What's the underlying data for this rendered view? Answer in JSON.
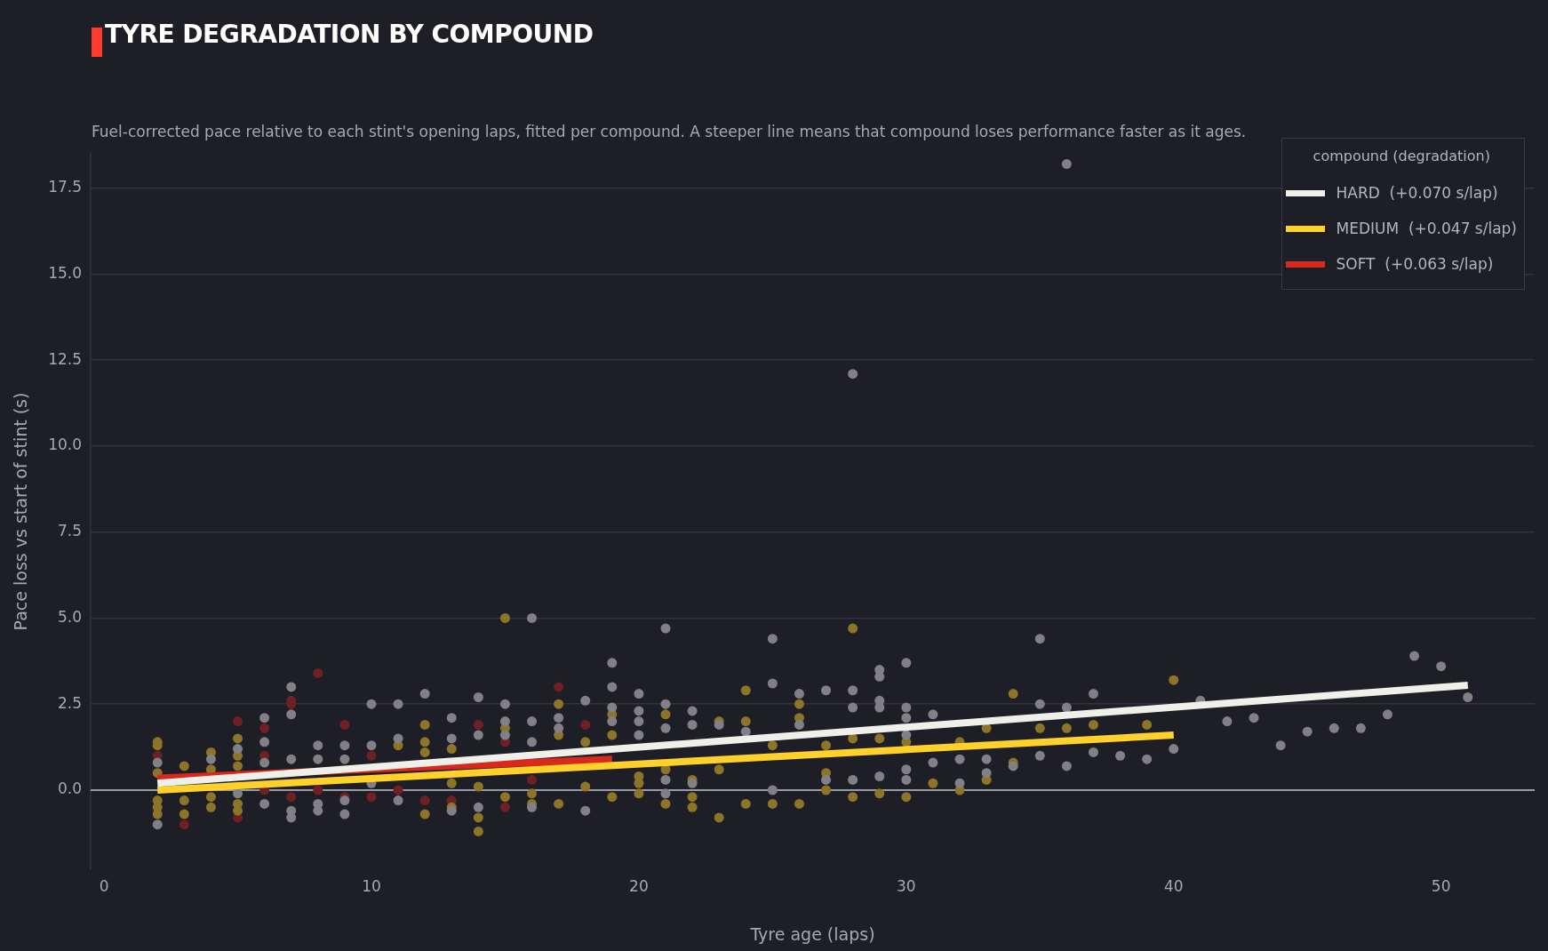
{
  "chart_data": {
    "type": "scatter",
    "title": "TYRE DEGRADATION BY COMPOUND",
    "subtitle": "Fuel-corrected pace relative to each stint's opening laps, fitted per compound. A steeper line means that compound loses performance faster as it ages.",
    "xlabel": "Tyre age (laps)",
    "ylabel": "Pace loss vs start of stint (s)",
    "legend_title": "compound (degradation)",
    "legend": "top right",
    "grid": "y",
    "xlim": [
      -0.5,
      53.5
    ],
    "xticks": [
      0,
      10,
      20,
      30,
      40,
      50
    ],
    "ylim": [
      -2.3,
      18.5
    ],
    "yticks": [
      {
        "value": 0,
        "label": "0.0"
      },
      {
        "value": 2.5,
        "label": "2.5"
      },
      {
        "value": 5,
        "label": "5.0"
      },
      {
        "value": 7.5,
        "label": "7.5"
      },
      {
        "value": 10,
        "label": "10.0"
      },
      {
        "value": 12.5,
        "label": "12.5"
      },
      {
        "value": 15,
        "label": "15.0"
      },
      {
        "value": 17.5,
        "label": "17.5"
      }
    ],
    "ref_lines": [
      {
        "axis": "y",
        "value": 0,
        "color": "#9a9aa6"
      }
    ],
    "series": [
      {
        "marker": "circle",
        "color": "#808086",
        "x": [
          2,
          2,
          4,
          5,
          5,
          6,
          6,
          6,
          6,
          7,
          7,
          7,
          7,
          7,
          8,
          8,
          8,
          8,
          9,
          9,
          9,
          9,
          10,
          10,
          10,
          11,
          11,
          11,
          12,
          13,
          13,
          13,
          14,
          14,
          14,
          15,
          15,
          15,
          16,
          16,
          16,
          16,
          17,
          17,
          18,
          18,
          19,
          19,
          19,
          19,
          20,
          20,
          20,
          20,
          21,
          21,
          21,
          21,
          21,
          22,
          22,
          22,
          23,
          24,
          25,
          25,
          25,
          26,
          26,
          27,
          27,
          28,
          28,
          28,
          28,
          29,
          29,
          29,
          29,
          29,
          30,
          30,
          30,
          30,
          30,
          30,
          31,
          31,
          32,
          32,
          33,
          33,
          34,
          35,
          35,
          35,
          36,
          36,
          36,
          37,
          37,
          38,
          39,
          40,
          41,
          42,
          43,
          44,
          45,
          46,
          47,
          48,
          49,
          50,
          51
        ],
        "values": [
          0.8,
          -1.0,
          0.9,
          1.2,
          -0.1,
          2.1,
          1.4,
          0.8,
          -0.4,
          3.0,
          2.2,
          0.9,
          -0.6,
          -0.8,
          1.3,
          0.9,
          -0.4,
          -0.6,
          1.3,
          0.9,
          -0.3,
          -0.7,
          2.5,
          1.3,
          0.2,
          2.5,
          1.5,
          -0.3,
          2.8,
          2.1,
          1.5,
          -0.6,
          2.7,
          1.6,
          -0.5,
          2.5,
          2.0,
          1.6,
          5.0,
          2.0,
          1.4,
          -0.5,
          2.1,
          1.8,
          2.6,
          -0.6,
          3.7,
          3.0,
          2.4,
          2.0,
          2.8,
          2.3,
          2.0,
          1.6,
          4.7,
          2.5,
          1.8,
          0.3,
          -0.1,
          2.3,
          1.9,
          0.2,
          1.9,
          1.7,
          4.4,
          3.1,
          0.0,
          2.8,
          1.9,
          2.9,
          0.3,
          12.1,
          2.9,
          2.4,
          0.3,
          3.5,
          3.3,
          2.6,
          2.4,
          0.4,
          3.7,
          2.4,
          2.1,
          1.6,
          0.6,
          0.3,
          2.2,
          0.8,
          0.9,
          0.2,
          0.9,
          0.5,
          0.7,
          4.4,
          2.5,
          1.0,
          18.2,
          2.4,
          0.7,
          2.8,
          1.1,
          1.0,
          0.9,
          1.2,
          2.6,
          2.0,
          2.1,
          1.3,
          1.7,
          1.8,
          1.8,
          2.2,
          3.9,
          3.6,
          2.7
        ]
      },
      {
        "marker": "circle",
        "color": "#8c7428",
        "x": [
          2,
          2,
          2,
          2,
          2,
          2,
          3,
          3,
          3,
          4,
          4,
          4,
          4,
          5,
          5,
          5,
          5,
          5,
          11,
          12,
          12,
          12,
          12,
          13,
          13,
          13,
          14,
          14,
          14,
          15,
          15,
          15,
          16,
          16,
          17,
          17,
          17,
          18,
          18,
          19,
          19,
          19,
          20,
          20,
          20,
          21,
          21,
          21,
          22,
          22,
          22,
          23,
          23,
          23,
          24,
          24,
          24,
          25,
          25,
          26,
          26,
          26,
          27,
          27,
          27,
          28,
          28,
          28,
          29,
          29,
          30,
          30,
          31,
          32,
          32,
          33,
          33,
          34,
          34,
          35,
          36,
          37,
          39,
          40
        ],
        "values": [
          1.4,
          1.3,
          0.5,
          -0.3,
          -0.5,
          -0.7,
          0.7,
          -0.3,
          -0.7,
          1.1,
          0.6,
          -0.2,
          -0.5,
          1.5,
          1.0,
          0.7,
          -0.4,
          -0.6,
          1.3,
          1.9,
          1.4,
          1.1,
          -0.7,
          1.2,
          0.2,
          -0.5,
          0.1,
          -0.8,
          -1.2,
          5.0,
          1.8,
          -0.2,
          -0.1,
          -0.4,
          2.5,
          1.6,
          -0.4,
          1.4,
          0.1,
          2.2,
          1.6,
          -0.2,
          0.4,
          0.2,
          -0.1,
          2.2,
          0.6,
          -0.4,
          0.3,
          -0.2,
          -0.5,
          2.0,
          0.6,
          -0.8,
          2.9,
          2.0,
          -0.4,
          1.3,
          -0.4,
          2.5,
          2.1,
          -0.4,
          1.3,
          0.5,
          0.0,
          4.7,
          1.5,
          -0.2,
          1.5,
          -0.1,
          1.4,
          -0.2,
          0.2,
          1.4,
          0.0,
          1.8,
          0.3,
          2.8,
          0.8,
          1.8,
          1.8,
          1.9,
          1.9,
          3.2
        ]
      },
      {
        "marker": "circle",
        "color": "#6e2024",
        "x": [
          2,
          3,
          5,
          5,
          6,
          6,
          6,
          7,
          7,
          7,
          8,
          8,
          9,
          9,
          10,
          10,
          11,
          12,
          13,
          14,
          15,
          15,
          16,
          17,
          18
        ],
        "values": [
          1.0,
          -1.0,
          2.0,
          -0.8,
          1.8,
          1.0,
          0.0,
          2.6,
          2.5,
          -0.2,
          3.4,
          0.0,
          1.9,
          -0.2,
          1.0,
          -0.2,
          0.0,
          -0.3,
          -0.3,
          1.9,
          1.4,
          -0.5,
          0.3,
          3.0,
          1.9
        ]
      },
      {
        "type": "line",
        "marker": "none",
        "name": "HARD  (+0.070 s/lap)",
        "color": "#f0f0ea",
        "x": [
          2,
          51
        ],
        "values": [
          0.2,
          3.05
        ]
      },
      {
        "type": "line",
        "marker": "none",
        "name": "MEDIUM  (+0.047 s/lap)",
        "color": "#ffd12a",
        "x": [
          2,
          40
        ],
        "values": [
          0.0,
          1.6
        ]
      },
      {
        "type": "line",
        "marker": "none",
        "name": "SOFT  (+0.063 s/lap)",
        "color": "#da291c",
        "x": [
          2,
          19
        ],
        "values": [
          0.35,
          0.9
        ]
      }
    ]
  }
}
